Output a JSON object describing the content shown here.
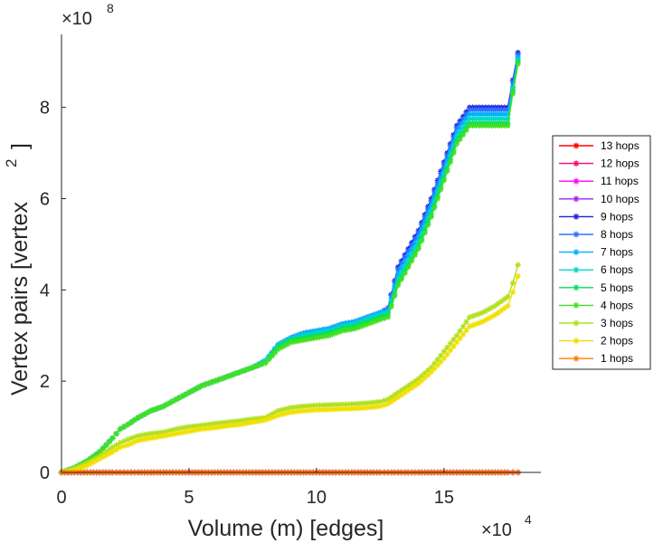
{
  "chart_data": {
    "type": "line",
    "xlabel": "Volume (m) [edges]",
    "ylabel": "Vertex pairs [vertex",
    "ylabel_superscript": "2",
    "ylabel_close": "]",
    "x_multiplier": {
      "base": "×10",
      "exponent": "4"
    },
    "y_multiplier": {
      "base": "×10",
      "exponent": "8"
    },
    "xlim": [
      0,
      18.8
    ],
    "ylim": [
      0,
      9.6
    ],
    "x_ticks": [
      0,
      5,
      10,
      15
    ],
    "x_tick_labels": [
      "0",
      "5",
      "10",
      "15"
    ],
    "y_ticks": [
      0,
      2,
      4,
      6,
      8
    ],
    "y_tick_labels": [
      "0",
      "2",
      "4",
      "6",
      "8"
    ],
    "legend_position": "right",
    "x": [
      0,
      0.5,
      1,
      1.5,
      2,
      2.3,
      2.6,
      3,
      3.5,
      4,
      4.5,
      5,
      5.5,
      6,
      6.5,
      7,
      7.5,
      8,
      8.5,
      9,
      9.5,
      10,
      10.5,
      11,
      11.5,
      12,
      12.5,
      12.8,
      13.2,
      13.6,
      14,
      14.5,
      15,
      15.5,
      16,
      16.5,
      17,
      17.5,
      17.7,
      17.9
    ],
    "series": [
      {
        "name": "13 hops",
        "color": "#ff0000",
        "values": [
          0,
          0,
          0,
          0,
          0,
          0,
          0,
          0,
          0,
          0,
          0,
          0,
          0,
          0,
          0,
          0,
          0,
          0,
          0,
          0,
          0,
          0,
          0,
          0,
          0,
          0,
          0,
          0,
          0,
          0,
          0,
          0,
          0,
          0,
          0,
          0,
          0,
          0,
          0,
          0
        ]
      },
      {
        "name": "12 hops",
        "color": "#ff007f",
        "values": [
          0,
          0,
          0,
          0,
          0,
          0,
          0,
          0,
          0,
          0,
          0,
          0,
          0,
          0,
          0,
          0,
          0,
          0,
          0,
          0,
          0,
          0,
          0,
          0,
          0,
          0,
          0,
          0,
          0,
          0,
          0,
          0,
          0,
          0,
          0,
          0,
          0,
          0,
          0,
          0
        ]
      },
      {
        "name": "11 hops",
        "color": "#ff00ff",
        "values": [
          0,
          0,
          0,
          0,
          0,
          0,
          0,
          0,
          0,
          0,
          0,
          0,
          0,
          0,
          0,
          0,
          0,
          0,
          0,
          0,
          0,
          0,
          0,
          0,
          0,
          0,
          0,
          0,
          0,
          0,
          0,
          0,
          0,
          0,
          0,
          0,
          0,
          0,
          0,
          0
        ]
      },
      {
        "name": "10 hops",
        "color": "#a020f0",
        "values": [
          0,
          0,
          0,
          0,
          0,
          0,
          0,
          0,
          0,
          0,
          0,
          0,
          0,
          0,
          0,
          0,
          0,
          0,
          0,
          0,
          0,
          0,
          0,
          0,
          0,
          0,
          0,
          0,
          0,
          0,
          0,
          0,
          0,
          0,
          0,
          0,
          0,
          0,
          0,
          0
        ]
      },
      {
        "name": "9 hops",
        "color": "#1f1fe0",
        "values": [
          0,
          0.1,
          0.25,
          0.45,
          0.75,
          0.95,
          1.05,
          1.2,
          1.35,
          1.45,
          1.6,
          1.75,
          1.9,
          2.0,
          2.1,
          2.2,
          2.3,
          2.45,
          2.8,
          2.95,
          3.05,
          3.1,
          3.15,
          3.25,
          3.3,
          3.4,
          3.5,
          3.6,
          4.5,
          4.9,
          5.3,
          6.0,
          6.8,
          7.6,
          8.0,
          8.0,
          8.0,
          8.0,
          8.6,
          9.2
        ]
      },
      {
        "name": "8 hops",
        "color": "#3070ff",
        "values": [
          0,
          0.1,
          0.25,
          0.45,
          0.75,
          0.95,
          1.05,
          1.2,
          1.35,
          1.45,
          1.6,
          1.75,
          1.9,
          2.0,
          2.1,
          2.2,
          2.3,
          2.45,
          2.8,
          2.95,
          3.05,
          3.1,
          3.15,
          3.25,
          3.3,
          3.4,
          3.5,
          3.6,
          4.45,
          4.85,
          5.25,
          5.95,
          6.75,
          7.55,
          7.95,
          7.95,
          7.95,
          7.95,
          8.55,
          9.15
        ]
      },
      {
        "name": "7 hops",
        "color": "#00b0ff",
        "values": [
          0,
          0.1,
          0.25,
          0.45,
          0.75,
          0.95,
          1.05,
          1.2,
          1.35,
          1.45,
          1.6,
          1.75,
          1.9,
          2.0,
          2.1,
          2.2,
          2.3,
          2.45,
          2.8,
          2.95,
          3.05,
          3.1,
          3.15,
          3.25,
          3.3,
          3.4,
          3.5,
          3.55,
          4.35,
          4.75,
          5.15,
          5.85,
          6.65,
          7.45,
          7.85,
          7.85,
          7.85,
          7.85,
          8.45,
          9.1
        ]
      },
      {
        "name": "6 hops",
        "color": "#00d8c8",
        "values": [
          0,
          0.1,
          0.25,
          0.45,
          0.75,
          0.95,
          1.05,
          1.2,
          1.35,
          1.45,
          1.6,
          1.75,
          1.9,
          2.0,
          2.1,
          2.2,
          2.3,
          2.45,
          2.78,
          2.92,
          3.0,
          3.05,
          3.1,
          3.2,
          3.25,
          3.35,
          3.45,
          3.5,
          4.25,
          4.65,
          5.05,
          5.75,
          6.55,
          7.35,
          7.75,
          7.75,
          7.75,
          7.75,
          8.4,
          9.05
        ]
      },
      {
        "name": "5 hops",
        "color": "#00e060",
        "values": [
          0,
          0.1,
          0.25,
          0.45,
          0.75,
          0.95,
          1.05,
          1.2,
          1.35,
          1.45,
          1.6,
          1.75,
          1.9,
          2.0,
          2.1,
          2.2,
          2.3,
          2.4,
          2.75,
          2.9,
          2.95,
          3.0,
          3.05,
          3.15,
          3.2,
          3.3,
          3.4,
          3.45,
          4.15,
          4.55,
          4.95,
          5.65,
          6.45,
          7.25,
          7.65,
          7.65,
          7.65,
          7.65,
          8.35,
          9.0
        ]
      },
      {
        "name": "4 hops",
        "color": "#40e020",
        "values": [
          0,
          0.1,
          0.25,
          0.45,
          0.75,
          0.95,
          1.05,
          1.2,
          1.35,
          1.45,
          1.6,
          1.75,
          1.9,
          2.0,
          2.1,
          2.2,
          2.3,
          2.4,
          2.7,
          2.85,
          2.9,
          2.95,
          3.0,
          3.1,
          3.15,
          3.25,
          3.35,
          3.4,
          4.1,
          4.5,
          4.9,
          5.6,
          6.4,
          7.2,
          7.6,
          7.6,
          7.6,
          7.6,
          8.3,
          8.95
        ]
      },
      {
        "name": "3 hops",
        "color": "#b0e020",
        "values": [
          0,
          0.08,
          0.2,
          0.35,
          0.55,
          0.65,
          0.72,
          0.8,
          0.85,
          0.88,
          0.95,
          1.0,
          1.03,
          1.07,
          1.1,
          1.13,
          1.17,
          1.2,
          1.35,
          1.42,
          1.45,
          1.47,
          1.48,
          1.49,
          1.5,
          1.52,
          1.55,
          1.6,
          1.75,
          1.9,
          2.05,
          2.3,
          2.65,
          3.0,
          3.4,
          3.5,
          3.65,
          3.85,
          4.15,
          4.55
        ]
      },
      {
        "name": "2 hops",
        "color": "#f0e000",
        "values": [
          0,
          0.05,
          0.15,
          0.3,
          0.45,
          0.55,
          0.6,
          0.7,
          0.75,
          0.8,
          0.85,
          0.9,
          0.95,
          0.98,
          1.02,
          1.05,
          1.1,
          1.15,
          1.25,
          1.32,
          1.35,
          1.37,
          1.38,
          1.39,
          1.4,
          1.42,
          1.45,
          1.5,
          1.65,
          1.8,
          1.95,
          2.2,
          2.5,
          2.85,
          3.2,
          3.3,
          3.45,
          3.65,
          3.95,
          4.3
        ]
      },
      {
        "name": "1 hops",
        "color": "#ff8000",
        "values": [
          0,
          0,
          0,
          0,
          0,
          0,
          0,
          0,
          0,
          0,
          0,
          0,
          0,
          0,
          0,
          0,
          0,
          0,
          0,
          0,
          0,
          0,
          0,
          0,
          0,
          0,
          0,
          0,
          0,
          0,
          0,
          0,
          0,
          0,
          0,
          0,
          0,
          0,
          0,
          0
        ]
      }
    ]
  }
}
